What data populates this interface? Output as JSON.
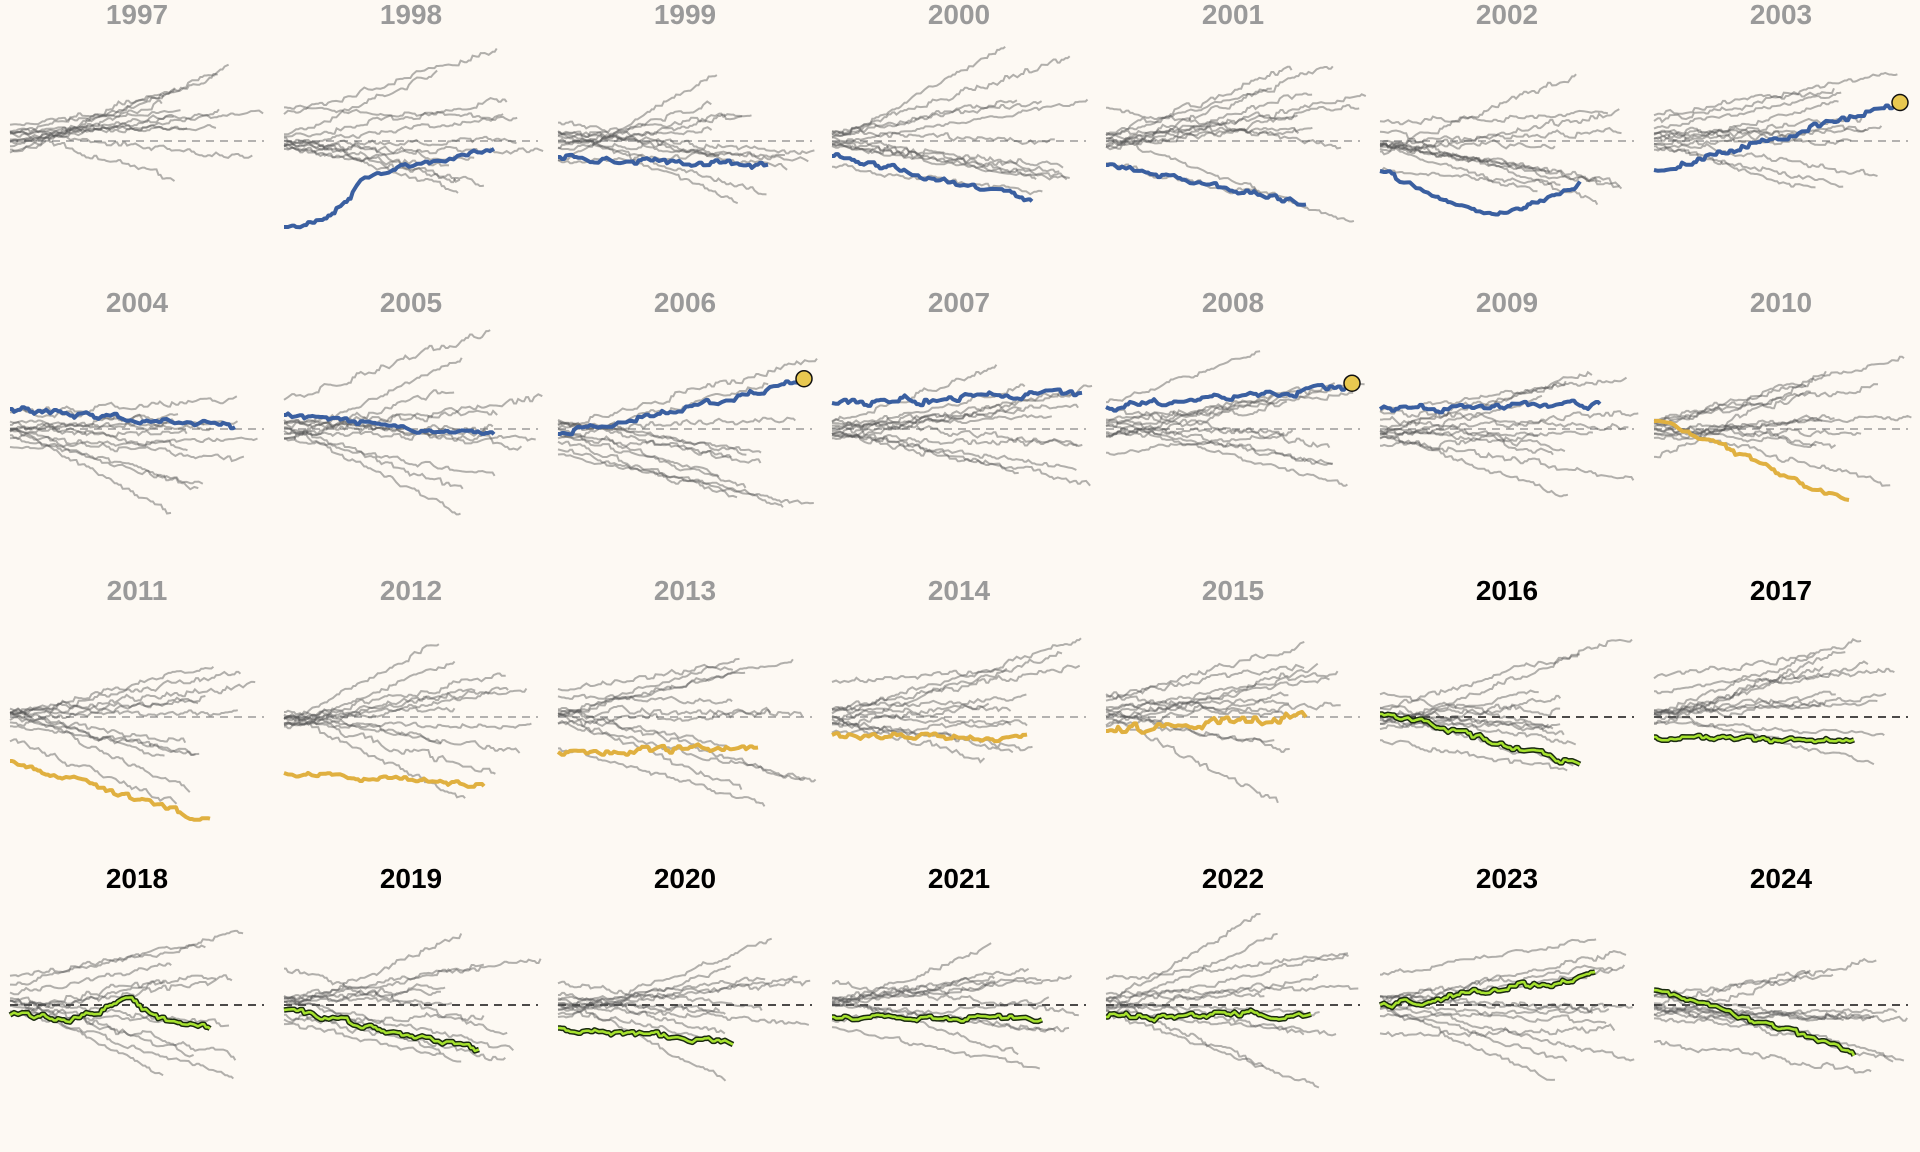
{
  "chart_data": {
    "type": "line",
    "layout": "small-multiples",
    "title": "",
    "xlabel": "",
    "ylabel": "",
    "reference_line_y": 0,
    "grid": false,
    "legend": "none",
    "colors": {
      "background": "#fdf9f3",
      "background_lines": "#555555",
      "past_title": "#9a9a9a",
      "recent_title": "#000000",
      "highlight_blue": "#3a5fa0",
      "highlight_gold": "#e0b040",
      "highlight_green": "#a6e22e",
      "highlight_outline": "#1a2a10",
      "marker_fill": "#e8c850"
    },
    "panels": [
      {
        "year": "1997",
        "style": "past",
        "highlight": "none"
      },
      {
        "year": "1998",
        "style": "past",
        "highlight": "blue"
      },
      {
        "year": "1999",
        "style": "past",
        "highlight": "blue"
      },
      {
        "year": "2000",
        "style": "past",
        "highlight": "blue"
      },
      {
        "year": "2001",
        "style": "past",
        "highlight": "blue"
      },
      {
        "year": "2002",
        "style": "past",
        "highlight": "blue"
      },
      {
        "year": "2003",
        "style": "past",
        "highlight": "blue",
        "marker": true
      },
      {
        "year": "2004",
        "style": "past",
        "highlight": "blue"
      },
      {
        "year": "2005",
        "style": "past",
        "highlight": "blue"
      },
      {
        "year": "2006",
        "style": "past",
        "highlight": "blue",
        "marker": true
      },
      {
        "year": "2007",
        "style": "past",
        "highlight": "blue"
      },
      {
        "year": "2008",
        "style": "past",
        "highlight": "blue",
        "marker": true
      },
      {
        "year": "2009",
        "style": "past",
        "highlight": "blue"
      },
      {
        "year": "2010",
        "style": "past",
        "highlight": "gold"
      },
      {
        "year": "2011",
        "style": "past",
        "highlight": "gold"
      },
      {
        "year": "2012",
        "style": "past",
        "highlight": "gold"
      },
      {
        "year": "2013",
        "style": "past",
        "highlight": "gold"
      },
      {
        "year": "2014",
        "style": "past",
        "highlight": "gold"
      },
      {
        "year": "2015",
        "style": "past",
        "highlight": "gold"
      },
      {
        "year": "2016",
        "style": "recent",
        "highlight": "green"
      },
      {
        "year": "2017",
        "style": "recent",
        "highlight": "green"
      },
      {
        "year": "2018",
        "style": "recent",
        "highlight": "green"
      },
      {
        "year": "2019",
        "style": "recent",
        "highlight": "green"
      },
      {
        "year": "2020",
        "style": "recent",
        "highlight": "green"
      },
      {
        "year": "2021",
        "style": "recent",
        "highlight": "green"
      },
      {
        "year": "2022",
        "style": "recent",
        "highlight": "green"
      },
      {
        "year": "2023",
        "style": "recent",
        "highlight": "green"
      },
      {
        "year": "2024",
        "style": "recent",
        "highlight": "green"
      }
    ]
  }
}
